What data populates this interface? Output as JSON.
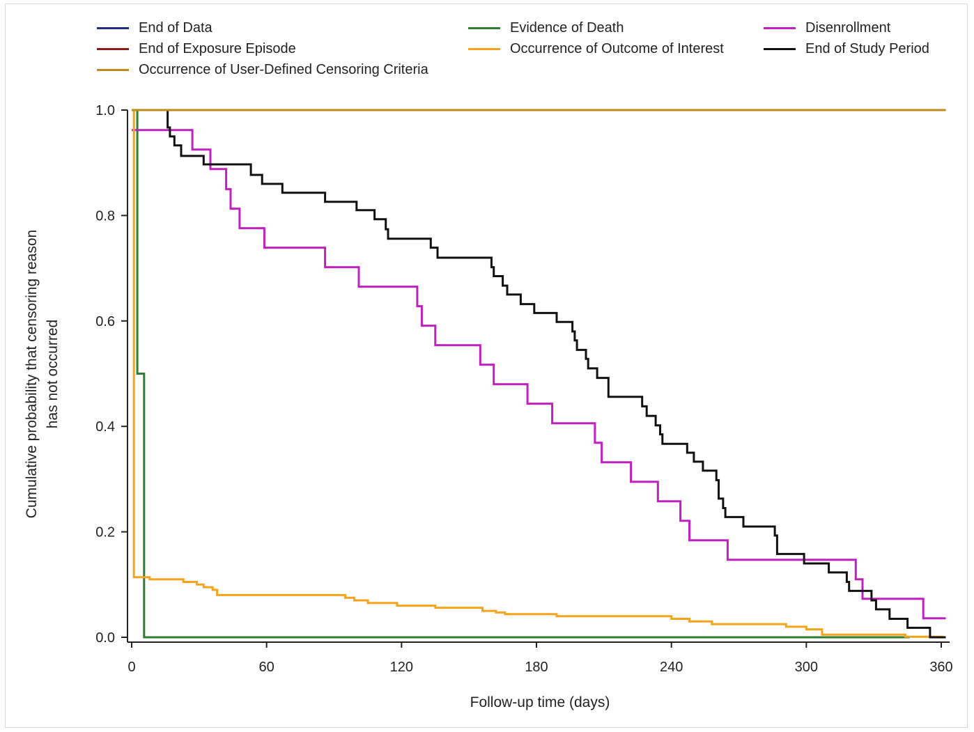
{
  "chart_data": {
    "type": "line",
    "step": true,
    "xlabel": "Follow-up time (days)",
    "ylabel": [
      "Cumulative probability that censoring reason",
      "has not occurred"
    ],
    "xlim": [
      0,
      365
    ],
    "ylim": [
      0,
      1.0
    ],
    "xticks": [
      0,
      60,
      120,
      180,
      240,
      300,
      360
    ],
    "yticks": [
      0.0,
      0.2,
      0.4,
      0.6,
      0.8,
      1.0
    ],
    "ytick_labels": [
      "0.0",
      "0.2",
      "0.4",
      "0.6",
      "0.8",
      "1.0"
    ],
    "grid": false,
    "legend_position": "top",
    "series": [
      {
        "name": "End of Data",
        "color": "#1f2d8a",
        "points": []
      },
      {
        "name": "Evidence of Death",
        "color": "#2e7d32",
        "points": [
          [
            0,
            1.0
          ],
          [
            2.5,
            0.5
          ],
          [
            5.5,
            0.0
          ],
          [
            346,
            0.0
          ]
        ]
      },
      {
        "name": "Disenrollment",
        "color": "#c020c0",
        "points": [
          [
            0,
            0.962
          ],
          [
            27,
            0.925
          ],
          [
            35,
            0.888
          ],
          [
            42,
            0.85
          ],
          [
            44,
            0.813
          ],
          [
            48,
            0.776
          ],
          [
            59,
            0.739
          ],
          [
            86,
            0.702
          ],
          [
            101,
            0.665
          ],
          [
            127,
            0.628
          ],
          [
            129,
            0.591
          ],
          [
            135,
            0.554
          ],
          [
            155,
            0.517
          ],
          [
            161,
            0.48
          ],
          [
            176,
            0.443
          ],
          [
            187,
            0.406
          ],
          [
            206,
            0.369
          ],
          [
            209,
            0.332
          ],
          [
            222,
            0.295
          ],
          [
            234,
            0.258
          ],
          [
            244,
            0.221
          ],
          [
            248,
            0.184
          ],
          [
            265,
            0.147
          ],
          [
            322,
            0.11
          ],
          [
            325,
            0.073
          ],
          [
            352,
            0.036
          ],
          [
            362,
            0.036
          ]
        ]
      },
      {
        "name": "End of Exposure Episode",
        "color": "#8b1a1a",
        "points": []
      },
      {
        "name": "Occurrence of Outcome of Interest",
        "color": "#f7a21b",
        "points": [
          [
            0,
            1.0
          ],
          [
            1,
            0.114
          ],
          [
            8,
            0.11
          ],
          [
            23,
            0.105
          ],
          [
            29,
            0.1
          ],
          [
            32,
            0.095
          ],
          [
            36,
            0.09
          ],
          [
            38,
            0.08
          ],
          [
            95,
            0.075
          ],
          [
            99,
            0.07
          ],
          [
            105,
            0.065
          ],
          [
            118,
            0.06
          ],
          [
            135,
            0.056
          ],
          [
            156,
            0.05
          ],
          [
            162,
            0.047
          ],
          [
            166,
            0.044
          ],
          [
            189,
            0.04
          ],
          [
            240,
            0.035
          ],
          [
            248,
            0.03
          ],
          [
            258,
            0.025
          ],
          [
            291,
            0.02
          ],
          [
            300,
            0.015
          ],
          [
            307,
            0.005
          ],
          [
            344,
            0.001
          ],
          [
            361,
            0.001
          ]
        ]
      },
      {
        "name": "End of Study Period",
        "color": "#111111",
        "points": [
          [
            15,
            1.0
          ],
          [
            16,
            0.967
          ],
          [
            17,
            0.95
          ],
          [
            19,
            0.933
          ],
          [
            22,
            0.913
          ],
          [
            32,
            0.897
          ],
          [
            53,
            0.877
          ],
          [
            58,
            0.86
          ],
          [
            67,
            0.843
          ],
          [
            86,
            0.826
          ],
          [
            100,
            0.81
          ],
          [
            108,
            0.793
          ],
          [
            113,
            0.774
          ],
          [
            114,
            0.756
          ],
          [
            133,
            0.739
          ],
          [
            136,
            0.72
          ],
          [
            160,
            0.702
          ],
          [
            161,
            0.685
          ],
          [
            165,
            0.667
          ],
          [
            167,
            0.65
          ],
          [
            173,
            0.632
          ],
          [
            179,
            0.615
          ],
          [
            189,
            0.598
          ],
          [
            196,
            0.58
          ],
          [
            197,
            0.563
          ],
          [
            198,
            0.545
          ],
          [
            202,
            0.528
          ],
          [
            203,
            0.51
          ],
          [
            207,
            0.492
          ],
          [
            212,
            0.456
          ],
          [
            227,
            0.438
          ],
          [
            229,
            0.42
          ],
          [
            233,
            0.402
          ],
          [
            235,
            0.385
          ],
          [
            236,
            0.367
          ],
          [
            247,
            0.35
          ],
          [
            250,
            0.333
          ],
          [
            254,
            0.316
          ],
          [
            260,
            0.298
          ],
          [
            261,
            0.263
          ],
          [
            263,
            0.245
          ],
          [
            264,
            0.228
          ],
          [
            272,
            0.21
          ],
          [
            286,
            0.193
          ],
          [
            287,
            0.158
          ],
          [
            299,
            0.14
          ],
          [
            310,
            0.123
          ],
          [
            318,
            0.105
          ],
          [
            319,
            0.088
          ],
          [
            329,
            0.07
          ],
          [
            331,
            0.053
          ],
          [
            337,
            0.035
          ],
          [
            345,
            0.018
          ],
          [
            355,
            0.0
          ],
          [
            362,
            0.0
          ]
        ]
      },
      {
        "name": "Occurrence of User-Defined Censoring Criteria",
        "color": "#bf8a1a",
        "points": [
          [
            0,
            1.0
          ],
          [
            362,
            1.0
          ]
        ]
      }
    ]
  }
}
